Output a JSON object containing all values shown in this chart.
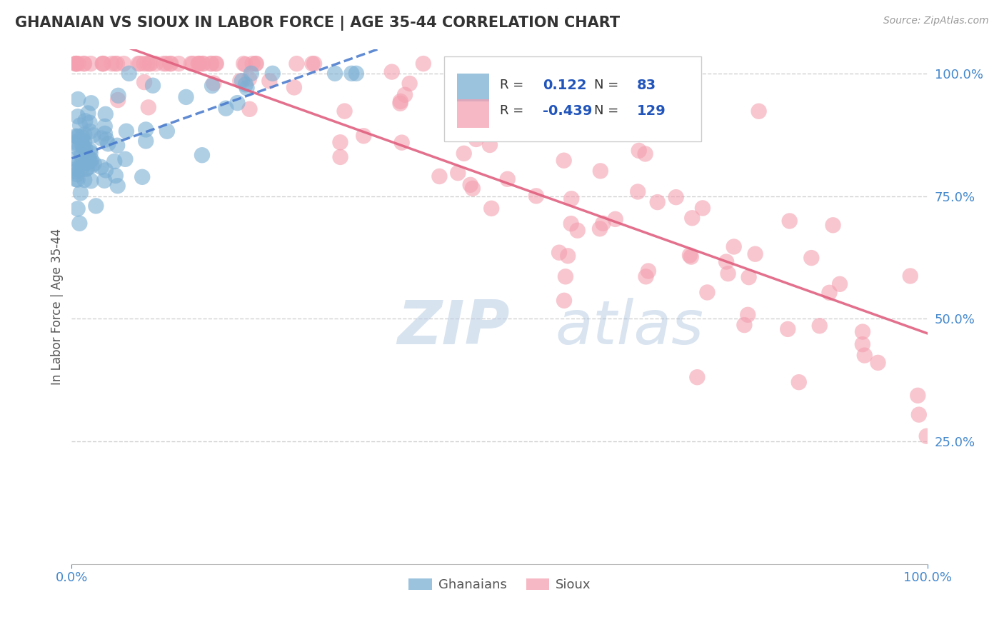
{
  "title": "GHANAIAN VS SIOUX IN LABOR FORCE | AGE 35-44 CORRELATION CHART",
  "source_text": "Source: ZipAtlas.com",
  "ylabel": "In Labor Force | Age 35-44",
  "ghanaian_color": "#7bafd4",
  "sioux_color": "#f4a0b0",
  "ghanaian_line_color": "#4477cc",
  "sioux_line_color": "#e06080",
  "ghanaian_R": 0.122,
  "ghanaian_N": 83,
  "sioux_R": -0.439,
  "sioux_N": 129,
  "legend_R_color": "#2255bb",
  "legend_text_color": "#333333",
  "background_color": "#ffffff",
  "grid_color": "#cccccc",
  "tick_color": "#4488cc",
  "watermark_zip_color": "#b8cce4",
  "watermark_atlas_color": "#9bb8d8",
  "seed": 123
}
